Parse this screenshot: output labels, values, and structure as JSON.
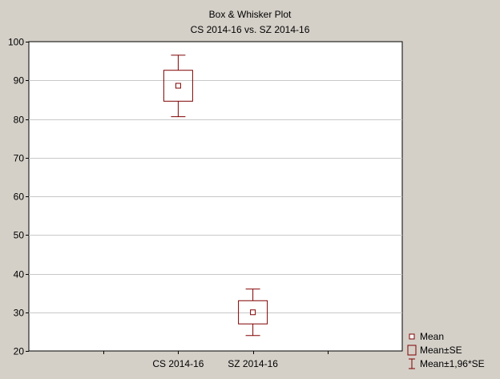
{
  "chart_data": {
    "type": "box",
    "title": "Box & Whisker Plot",
    "subtitle": "CS 2014-16 vs. SZ 2014-16",
    "xlabel": "",
    "ylabel": "",
    "ylim": [
      20,
      100
    ],
    "yticks": [
      20,
      30,
      40,
      50,
      60,
      70,
      80,
      90,
      100
    ],
    "grid": true,
    "legend_position": "bottom-right",
    "categories": [
      "CS 2014-16",
      "SZ 2014-16"
    ],
    "series": [
      {
        "name": "CS 2014-16",
        "mean": 88.6,
        "se_low": 84.6,
        "se_high": 92.6,
        "ci_low": 80.6,
        "ci_high": 96.5
      },
      {
        "name": "SZ 2014-16",
        "mean": 30.0,
        "se_low": 27.0,
        "se_high": 33.0,
        "ci_low": 24.0,
        "ci_high": 36.0
      }
    ],
    "legend": [
      {
        "symbol": "mean",
        "label": "Mean"
      },
      {
        "symbol": "box",
        "label": "Mean±SE"
      },
      {
        "symbol": "whisker",
        "label": "Mean±1,96*SE"
      }
    ],
    "colors": {
      "marker": "#800000",
      "grid": "#c8c8c8",
      "axis": "#000000",
      "plot_bg": "#ffffff",
      "window_bg": "#d4d0c8"
    }
  }
}
